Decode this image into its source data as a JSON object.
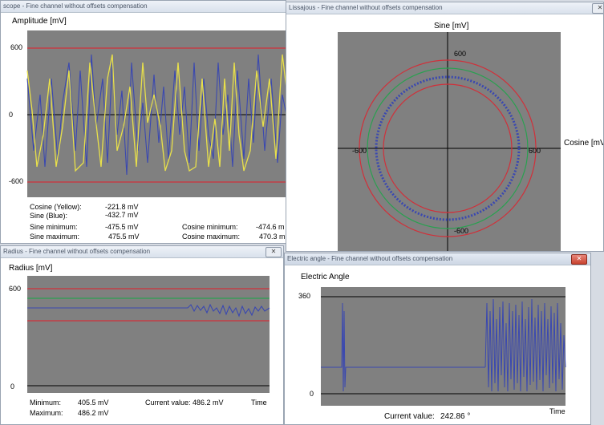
{
  "scope": {
    "title": "scope - Fine channel without offsets compensation",
    "ylabel": "Amplitude [mV]",
    "ticks": [
      "600",
      "0",
      "-600"
    ],
    "stats": [
      {
        "label": "Cosine (Yellow):",
        "value": "-221.8 mV"
      },
      {
        "label": "Sine (Blue):",
        "value": "-432.7 mV"
      },
      {
        "label": "Sine minimum:",
        "value": "-475.5 mV"
      },
      {
        "label": "Sine maximum:",
        "value": "475.5 mV"
      }
    ],
    "stats2": [
      {
        "label": "Cosine minimum:",
        "value": "-474.6 m"
      },
      {
        "label": "Cosine maximum:",
        "value": "470.3 m"
      }
    ],
    "colors": {
      "cosine": "#e8e04a",
      "sine": "#3a48b0",
      "limit": "#d0303a"
    }
  },
  "lissajous": {
    "title": "Lissajous - Fine channel without offsets compensation",
    "close_glyph": "✕",
    "ylabel": "Sine [mV]",
    "xlabel": "Cosine [mV",
    "ticks": {
      "top": "600",
      "bottom": "-600",
      "left": "-600",
      "right": "600"
    }
  },
  "radius": {
    "title": "Radius - Fine channel without offsets compensation",
    "close_glyph": "✕",
    "ylabel": "Radius [mV]",
    "ticks": [
      "600",
      "0"
    ],
    "min_label": "Minimum:",
    "min_value": "405.5 mV",
    "max_label": "Maximum:",
    "max_value": "486.2 mV",
    "current": "Current value: 486.2 mV",
    "xlabel": "Time"
  },
  "angle": {
    "title": "Electric angle - Fine channel without offsets compensation",
    "close_glyph": "✕",
    "ylabel": "Electric Angle",
    "ticks": [
      "360",
      "0"
    ],
    "current_label": "Current value:",
    "current_value": "242.86 °",
    "xlabel": "Time"
  }
}
